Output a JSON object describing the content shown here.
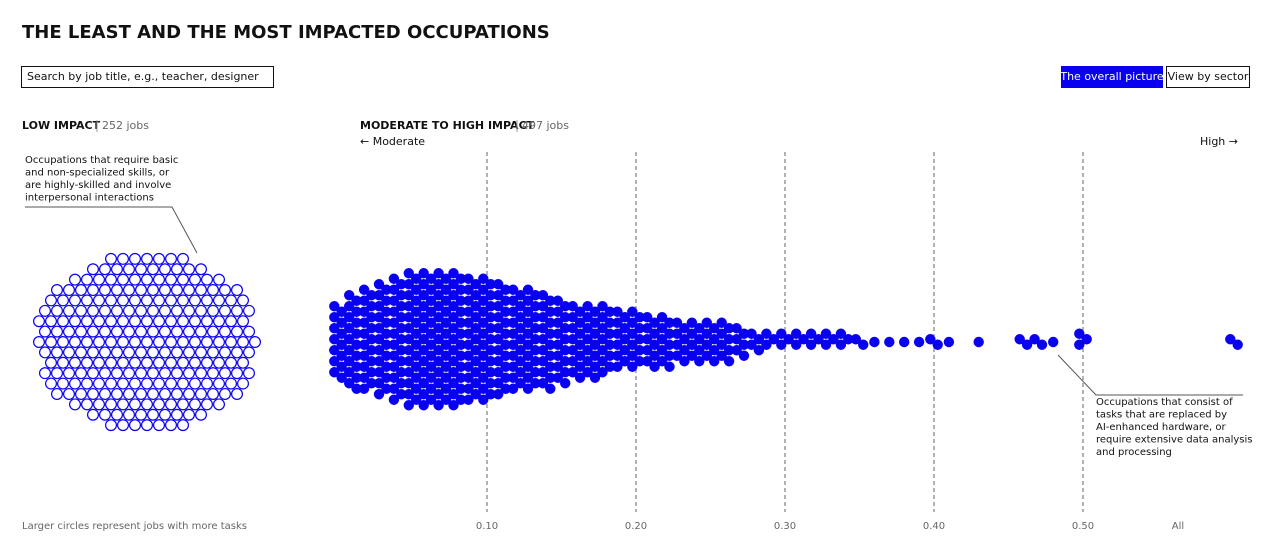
{
  "header": {
    "title": "THE LEAST AND THE MOST IMPACTED OCCUPATIONS",
    "search_placeholder": "Search by job title, e.g., teacher, designer",
    "buttons": [
      "The overall picture",
      "View by sector"
    ]
  },
  "chart_data": {
    "type": "beeswarm",
    "color": "#0a00f0",
    "low_impact": {
      "label": "LOW IMPACT",
      "jobs_label": "252 jobs",
      "count": 252
    },
    "high_impact": {
      "label": "MODERATE TO HIGH IMPACT",
      "jobs_label": "497 jobs",
      "count": 497
    },
    "left_axis_label": "← Moderate",
    "right_axis_label": "High →",
    "x": [
      0,
      0.01,
      0.02,
      0.03,
      0.04,
      0.05,
      0.06,
      0.07,
      0.08,
      0.09,
      0.1,
      0.11,
      0.12,
      0.13,
      0.14,
      0.15,
      0.16,
      0.17,
      0.18,
      0.19,
      0.2,
      0.21,
      0.22,
      0.23,
      0.24,
      0.25,
      0.26,
      0.27,
      0.28,
      0.29,
      0.3,
      0.31,
      0.32,
      0.33,
      0.34,
      0.35,
      0.36,
      0.37,
      0.38,
      0.39,
      0.4,
      0.41,
      0.43,
      0.46,
      0.47,
      0.48,
      0.5
    ],
    "values": [
      14,
      18,
      19,
      21,
      23,
      25,
      25,
      25,
      25,
      23,
      23,
      21,
      19,
      19,
      18,
      16,
      14,
      14,
      13,
      11,
      11,
      10,
      10,
      8,
      8,
      8,
      8,
      6,
      4,
      3,
      3,
      3,
      3,
      3,
      3,
      2,
      1,
      1,
      1,
      1,
      2,
      1,
      1,
      2,
      2,
      1,
      3
    ],
    "all_label": "All",
    "all_count": 2,
    "xlim": [
      0,
      0.5
    ],
    "xticks": [
      {
        "value": 0.1,
        "label": "0.10"
      },
      {
        "value": 0.2,
        "label": "0.20"
      },
      {
        "value": 0.3,
        "label": "0.30"
      },
      {
        "value": 0.4,
        "label": "0.40"
      },
      {
        "value": 0.5,
        "label": "0.50"
      }
    ],
    "grid": true,
    "annotations": [
      [
        "Occupations that require basic",
        "and non-specialized skills, or",
        "are highly-skilled and involve",
        "interpersonal interactions"
      ],
      [
        "Occupations that consist of",
        "tasks that are replaced by",
        "AI-enhanced hardware, or",
        "require extensive data analysis",
        "and processing"
      ]
    ],
    "footnote": "Larger circles represent jobs with more tasks"
  }
}
